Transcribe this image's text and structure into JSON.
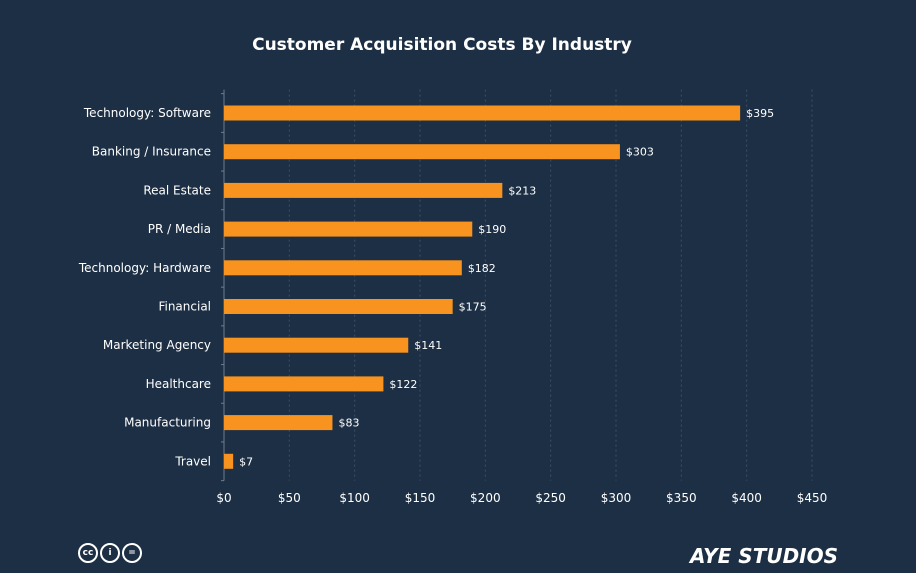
{
  "chart_data": {
    "type": "bar",
    "orientation": "horizontal",
    "title": "Customer Acquisition Costs By Industry",
    "categories": [
      "Technology: Software",
      "Banking / Insurance",
      "Real Estate",
      "PR / Media",
      "Technology: Hardware",
      "Financial",
      "Marketing Agency",
      "Healthcare",
      "Manufacturing",
      "Travel"
    ],
    "values": [
      395,
      303,
      213,
      190,
      182,
      175,
      141,
      122,
      83,
      7
    ],
    "value_labels": [
      "$395",
      "$303",
      "$213",
      "$190",
      "$182",
      "$175",
      "$141",
      "$122",
      "$83",
      "$7"
    ],
    "xticks": [
      0,
      50,
      100,
      150,
      200,
      250,
      300,
      350,
      400,
      450
    ],
    "xtick_labels": [
      "$0",
      "$50",
      "$100",
      "$150",
      "$200",
      "$250",
      "$300",
      "$350",
      "$400",
      "$450"
    ],
    "xlim": [
      0,
      450
    ],
    "xlabel": "",
    "ylabel": "",
    "grid": "vertical dotted",
    "bar_color": "#f7931e",
    "background_color": "#1d2f44"
  },
  "footer": {
    "license_icons": [
      "creative-commons-icon",
      "attribution-icon",
      "no-derivatives-icon"
    ],
    "license_glyphs": [
      "cc",
      "i",
      "="
    ],
    "logo_text": "AYE STUDIOS"
  }
}
